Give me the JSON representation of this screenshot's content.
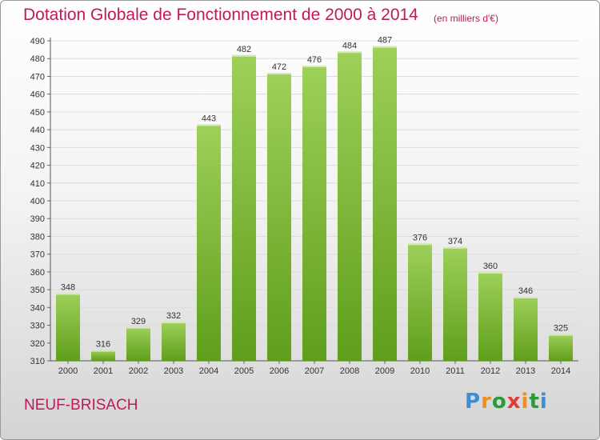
{
  "header": {
    "title": "Dotation Globale de Fonctionnement de 2000 à 2014",
    "subtitle": "(en milliers d'€)"
  },
  "footer": {
    "commune": "NEUF-BRISACH",
    "brand": "Proxiti"
  },
  "colors": {
    "title": "#c2185b",
    "bar_light": "#9ed05a",
    "bar_dark": "#5f9e1c"
  },
  "chart_data": {
    "type": "bar",
    "title": "Dotation Globale de Fonctionnement de 2000 à 2014",
    "subtitle": "(en milliers d'€)",
    "xlabel": "",
    "ylabel": "",
    "categories": [
      "2000",
      "2001",
      "2002",
      "2003",
      "2004",
      "2005",
      "2006",
      "2007",
      "2008",
      "2009",
      "2010",
      "2011",
      "2012",
      "2013",
      "2014"
    ],
    "values": [
      348,
      316,
      329,
      332,
      443,
      482,
      472,
      476,
      484,
      487,
      376,
      374,
      360,
      346,
      325
    ],
    "ylim": [
      310,
      490
    ],
    "yticks": [
      310,
      320,
      330,
      340,
      350,
      360,
      370,
      380,
      390,
      400,
      410,
      420,
      430,
      440,
      450,
      460,
      470,
      480,
      490
    ],
    "grid": true,
    "legend": "none"
  }
}
